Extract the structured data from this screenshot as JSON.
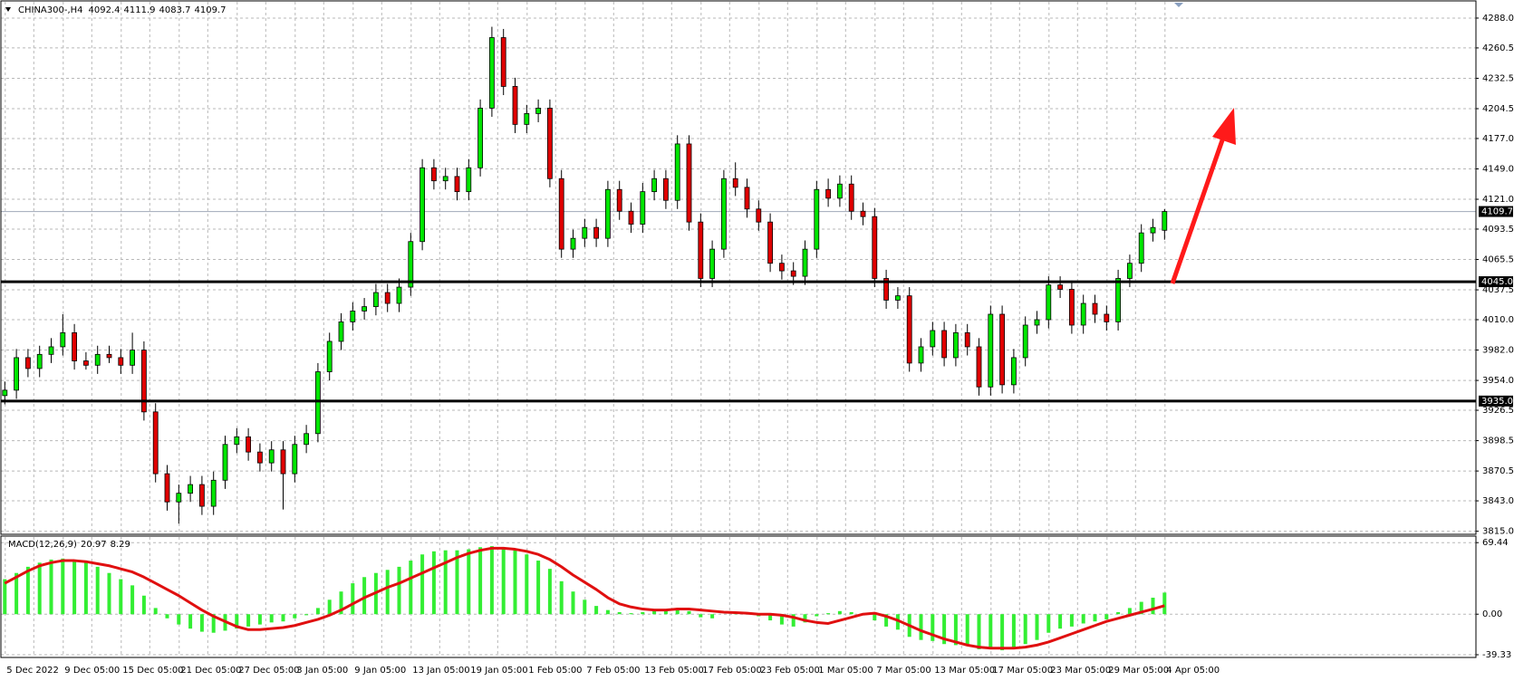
{
  "chart_data": [
    {
      "type": "candlestick",
      "title": "CHINA300-,H4",
      "categories": [
        "5 Dec 2022",
        null,
        null,
        null,
        null,
        "9 Dec 05:00",
        null,
        null,
        null,
        null,
        "15 Dec 05:00",
        null,
        null,
        null,
        null,
        "21 Dec 05:00",
        null,
        null,
        null,
        null,
        "27 Dec 05:00",
        null,
        null,
        null,
        null,
        "3 Jan 05:00",
        null,
        null,
        null,
        null,
        "9 Jan 05:00",
        null,
        null,
        null,
        null,
        "13 Jan 05:00",
        null,
        null,
        null,
        null,
        "19 Jan 05:00",
        null,
        null,
        null,
        null,
        "1 Feb 05:00",
        null,
        null,
        null,
        null,
        "7 Feb 05:00",
        null,
        null,
        null,
        null,
        "13 Feb 05:00",
        null,
        null,
        null,
        null,
        "17 Feb 05:00",
        null,
        null,
        null,
        null,
        "23 Feb 05:00",
        null,
        null,
        null,
        null,
        "1 Mar 05:00",
        null,
        null,
        null,
        null,
        "7 Mar 05:00",
        null,
        null,
        null,
        null,
        "13 Mar 05:00",
        null,
        null,
        null,
        null,
        "17 Mar 05:00",
        null,
        null,
        null,
        null,
        "23 Mar 05:00",
        null,
        null,
        null,
        null,
        "29 Mar 05:00",
        null,
        null,
        null,
        null,
        "4 Apr 05:00"
      ],
      "open": [
        3940,
        3945,
        3975,
        3965,
        3978,
        3985,
        3998,
        3972,
        3968,
        3978,
        3975,
        3968,
        3982,
        3925,
        3868,
        3842,
        3850,
        3858,
        3838,
        3862,
        3895,
        3902,
        3888,
        3878,
        3890,
        3868,
        3895,
        3905,
        3962,
        3990,
        4008,
        4018,
        4022,
        4035,
        4025,
        4040,
        4082,
        4150,
        4138,
        4142,
        4128,
        4150,
        4205,
        4270,
        4225,
        4190,
        4200,
        4205,
        4140,
        4075,
        4085,
        4095,
        4085,
        4130,
        4110,
        4098,
        4128,
        4140,
        4120,
        4172,
        4100,
        4048,
        4075,
        4140,
        4132,
        4112,
        4100,
        4062,
        4055,
        4050,
        4075,
        4130,
        4122,
        4135,
        4110,
        4105,
        4048,
        4028,
        4032,
        3970,
        3985,
        4000,
        3975,
        3998,
        3985,
        3948,
        4015,
        3950,
        3975,
        4005,
        4010,
        4042,
        4038,
        4005,
        4025,
        4015,
        4008,
        4048,
        4062,
        4090,
        4092.4
      ],
      "high": [
        3953,
        3983,
        3983,
        3986,
        3993,
        4015,
        4006,
        3980,
        3986,
        3986,
        3983,
        3998,
        3990,
        3933,
        3876,
        3858,
        3866,
        3866,
        3870,
        3903,
        3910,
        3910,
        3896,
        3898,
        3898,
        3903,
        3913,
        3970,
        3998,
        4016,
        4026,
        4030,
        4043,
        4043,
        4048,
        4090,
        4158,
        4158,
        4150,
        4150,
        4158,
        4213,
        4280,
        4278,
        4233,
        4208,
        4213,
        4213,
        4148,
        4093,
        4103,
        4103,
        4138,
        4138,
        4118,
        4136,
        4148,
        4148,
        4180,
        4180,
        4108,
        4083,
        4148,
        4155,
        4140,
        4120,
        4108,
        4070,
        4063,
        4083,
        4138,
        4140,
        4143,
        4143,
        4118,
        4113,
        4056,
        4040,
        4040,
        3993,
        4008,
        4008,
        4006,
        4006,
        3993,
        4023,
        4023,
        3983,
        4013,
        4018,
        4050,
        4050,
        4046,
        4033,
        4033,
        4023,
        4056,
        4070,
        4098,
        4103,
        4111.9
      ],
      "low": [
        3932,
        3937,
        3957,
        3957,
        3970,
        3977,
        3964,
        3964,
        3960,
        3970,
        3960,
        3960,
        3917,
        3860,
        3834,
        3822,
        3842,
        3830,
        3830,
        3854,
        3887,
        3880,
        3870,
        3870,
        3835,
        3860,
        3887,
        3897,
        3954,
        3982,
        4000,
        4010,
        4014,
        4017,
        4017,
        4032,
        4074,
        4130,
        4130,
        4120,
        4120,
        4142,
        4197,
        4217,
        4182,
        4182,
        4192,
        4132,
        4067,
        4067,
        4077,
        4077,
        4077,
        4102,
        4090,
        4090,
        4120,
        4112,
        4112,
        4092,
        4040,
        4040,
        4067,
        4124,
        4104,
        4092,
        4054,
        4047,
        4042,
        4042,
        4067,
        4114,
        4114,
        4102,
        4097,
        4040,
        4020,
        4020,
        3962,
        3962,
        3977,
        3967,
        3967,
        3977,
        3940,
        3940,
        3942,
        3942,
        3967,
        3997,
        4002,
        4030,
        3997,
        3997,
        4007,
        4000,
        4000,
        4040,
        4054,
        4082,
        4083.7
      ],
      "close": [
        3945,
        3975,
        3965,
        3978,
        3985,
        3998,
        3972,
        3968,
        3978,
        3975,
        3968,
        3982,
        3925,
        3868,
        3842,
        3850,
        3858,
        3838,
        3862,
        3895,
        3902,
        3888,
        3878,
        3890,
        3868,
        3895,
        3905,
        3962,
        3990,
        4008,
        4018,
        4022,
        4035,
        4025,
        4040,
        4082,
        4150,
        4138,
        4142,
        4128,
        4150,
        4205,
        4270,
        4225,
        4190,
        4200,
        4205,
        4140,
        4075,
        4085,
        4095,
        4085,
        4130,
        4110,
        4098,
        4128,
        4140,
        4120,
        4172,
        4100,
        4048,
        4075,
        4140,
        4132,
        4112,
        4100,
        4062,
        4055,
        4050,
        4075,
        4130,
        4122,
        4135,
        4110,
        4105,
        4048,
        4028,
        4032,
        3970,
        3985,
        4000,
        3975,
        3998,
        3985,
        3948,
        4015,
        3950,
        3975,
        4005,
        4010,
        4042,
        4038,
        4005,
        4025,
        4015,
        4008,
        4048,
        4062,
        4090,
        4095,
        4109.7
      ],
      "up_color": "#00e600",
      "down_color": "#e00000",
      "ylim": [
        3813,
        4303
      ],
      "yticks": [
        {
          "value": 4288,
          "label": "4288.0"
        },
        {
          "value": 4260.5,
          "label": "4260.5"
        },
        {
          "value": 4232.5,
          "label": "4232.5"
        },
        {
          "value": 4204.5,
          "label": "4204.5"
        },
        {
          "value": 4177,
          "label": "4177.0"
        },
        {
          "value": 4149,
          "label": "4149.0"
        },
        {
          "value": 4121,
          "label": "4121.0"
        },
        {
          "value": 4093.5,
          "label": "4093.5"
        },
        {
          "value": 4065.5,
          "label": "4065.5"
        },
        {
          "value": 4037.5,
          "label": "4037.5"
        },
        {
          "value": 4010,
          "label": "4010.0"
        },
        {
          "value": 3982,
          "label": "3982.0"
        },
        {
          "value": 3954,
          "label": "3954.0"
        },
        {
          "value": 3926.5,
          "label": "3926.5"
        },
        {
          "value": 3898.5,
          "label": "3898.5"
        },
        {
          "value": 3870.5,
          "label": "3870.5"
        },
        {
          "value": 3843,
          "label": "3843.0"
        },
        {
          "value": 3815,
          "label": "3815.0"
        }
      ],
      "hlines": [
        {
          "value": 4045,
          "label": "4045.0"
        },
        {
          "value": 3935,
          "label": "3935.0"
        }
      ],
      "grid": true
    },
    {
      "type": "macd",
      "title": "MACD(12,26,9)",
      "histogram": {
        "color": "#33ee33",
        "values": [
          34,
          40,
          46,
          50,
          53,
          54,
          53,
          50,
          46,
          40,
          34,
          28,
          18,
          6,
          -4,
          -10,
          -14,
          -17,
          -18,
          -16,
          -14,
          -12,
          -10,
          -8,
          -7,
          -4,
          -1,
          6,
          14,
          22,
          30,
          36,
          40,
          43,
          46,
          52,
          58,
          61,
          62,
          62,
          63,
          65,
          66,
          65,
          62,
          58,
          52,
          44,
          32,
          22,
          14,
          8,
          4,
          2,
          1,
          2,
          4,
          5,
          6,
          3,
          -3,
          -4,
          0,
          1,
          0,
          -2,
          -6,
          -10,
          -12,
          -8,
          -2,
          1,
          3,
          2,
          0,
          -6,
          -12,
          -15,
          -22,
          -25,
          -26,
          -29,
          -30,
          -31,
          -34,
          -32,
          -35,
          -33,
          -29,
          -25,
          -18,
          -14,
          -12,
          -9,
          -7,
          -5,
          2,
          6,
          12,
          16,
          20.97
        ]
      },
      "signal": {
        "color": "#e01010",
        "values": [
          30,
          36,
          42,
          47,
          50,
          52,
          52,
          51,
          49,
          47,
          44,
          41,
          36,
          30,
          24,
          18,
          11,
          4,
          -2,
          -7,
          -12,
          -15,
          -15,
          -14,
          -13,
          -11,
          -8,
          -5,
          -1,
          4,
          10,
          16,
          21,
          26,
          30,
          35,
          40,
          45,
          50,
          55,
          59,
          62,
          64,
          64,
          63,
          61,
          58,
          53,
          46,
          38,
          31,
          24,
          16,
          10,
          7,
          5,
          4,
          4,
          5,
          5,
          4,
          3,
          2,
          1.5,
          1,
          0,
          0,
          -1,
          -3,
          -6,
          -8,
          -9,
          -6,
          -3,
          0,
          1,
          -2,
          -6,
          -11,
          -16,
          -20,
          -24,
          -27,
          -30,
          -32,
          -33,
          -33,
          -33,
          -32,
          -30,
          -27,
          -23,
          -19,
          -15,
          -11,
          -7,
          -4,
          -1,
          2,
          5,
          8.29
        ]
      },
      "ylim": [
        -41.1,
        74.9
      ],
      "yticks": [
        69.44,
        {
          "value": 0,
          "label": "0.00"
        },
        -39.33
      ],
      "grid": true
    }
  ]
}
